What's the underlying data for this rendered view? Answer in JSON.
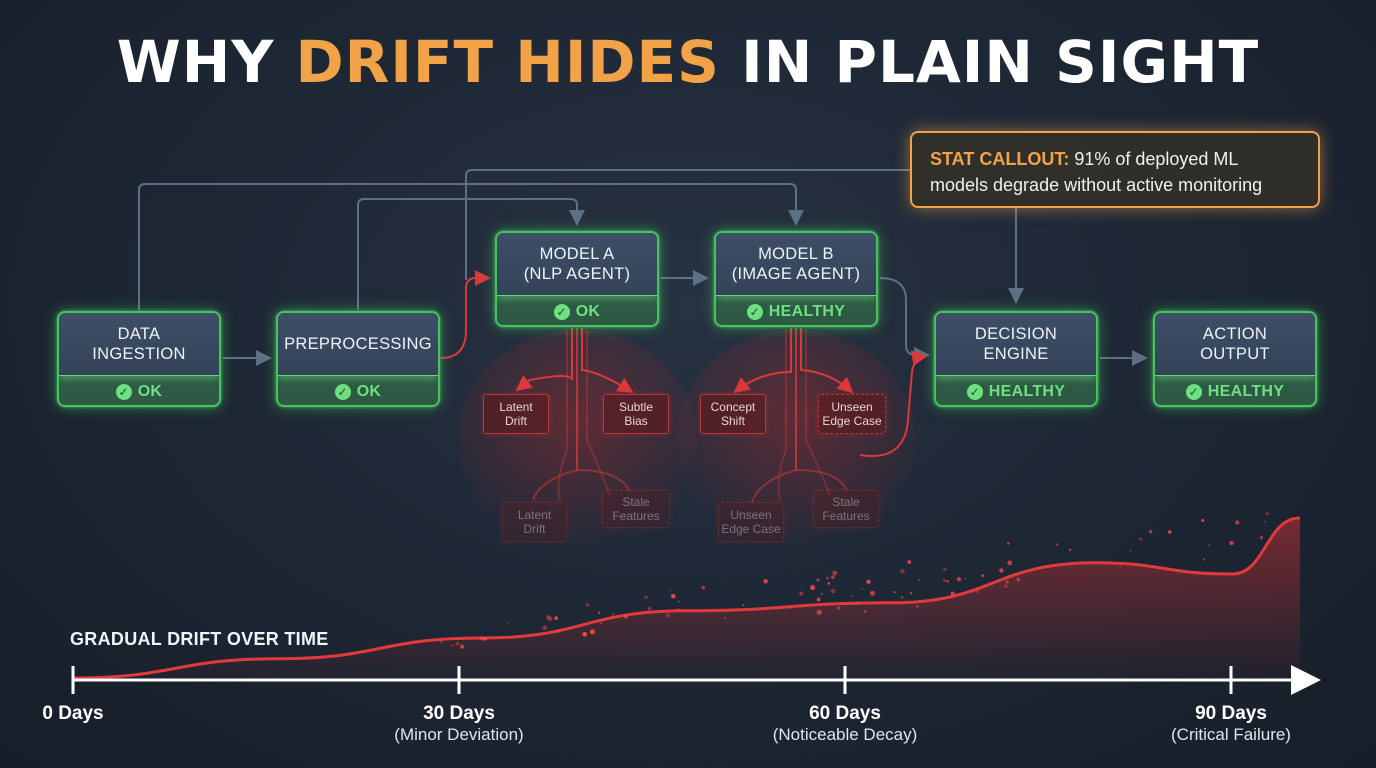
{
  "title": {
    "part1": "WHY ",
    "highlight": "DRIFT HIDES",
    "part2": " IN PLAIN SIGHT"
  },
  "colors": {
    "accent": "#f2a347",
    "healthy": "#6fe07f",
    "drift": "#d9393a",
    "node_border": "#46c25f"
  },
  "callout": {
    "label": "STAT CALLOUT:",
    "line1": " 91% of deployed ML",
    "line2": "models degrade without active monitoring"
  },
  "nodes": [
    {
      "label": "DATA\nINGESTION",
      "status": "OK",
      "icon": "check-circle-icon"
    },
    {
      "label": "PREPROCESSING",
      "status": "OK",
      "icon": "check-circle-icon"
    },
    {
      "label": "MODEL A\n(NLP AGENT)",
      "status": "OK",
      "icon": "check-circle-icon"
    },
    {
      "label": "MODEL B\n(IMAGE AGENT)",
      "status": "HEALTHY",
      "icon": "check-circle-icon"
    },
    {
      "label": "DECISION\nENGINE",
      "status": "HEALTHY",
      "icon": "check-circle-icon"
    },
    {
      "label": "ACTION\nOUTPUT",
      "status": "HEALTHY",
      "icon": "check-circle-icon"
    }
  ],
  "drift_tags": {
    "model_a": [
      "Latent\nDrift",
      "Subtle\nBias",
      "Latent\nDrift",
      "Stale\nFeatures"
    ],
    "model_b": [
      "Concept\nShift",
      "Unseen\nEdge Case",
      "Unseen\nEdge Case",
      "Stale\nFeatures"
    ]
  },
  "timeline": {
    "label": "GRADUAL DRIFT OVER TIME",
    "ticks": [
      {
        "title": "0 Days",
        "subtitle": ""
      },
      {
        "title": "30 Days",
        "subtitle": "(Minor Deviation)"
      },
      {
        "title": "60 Days",
        "subtitle": "(Noticeable Decay)"
      },
      {
        "title": "90 Days",
        "subtitle": "(Critical Failure)"
      }
    ]
  },
  "chart_data": {
    "type": "area",
    "series": [
      {
        "x": [
          0,
          15,
          30,
          45,
          60,
          75,
          85,
          90
        ],
        "y": [
          0,
          0.12,
          0.25,
          0.42,
          0.47,
          0.72,
          0.65,
          1.0
        ]
      }
    ],
    "xlim": [
      0,
      90
    ],
    "ylim": [
      0,
      1
    ]
  }
}
